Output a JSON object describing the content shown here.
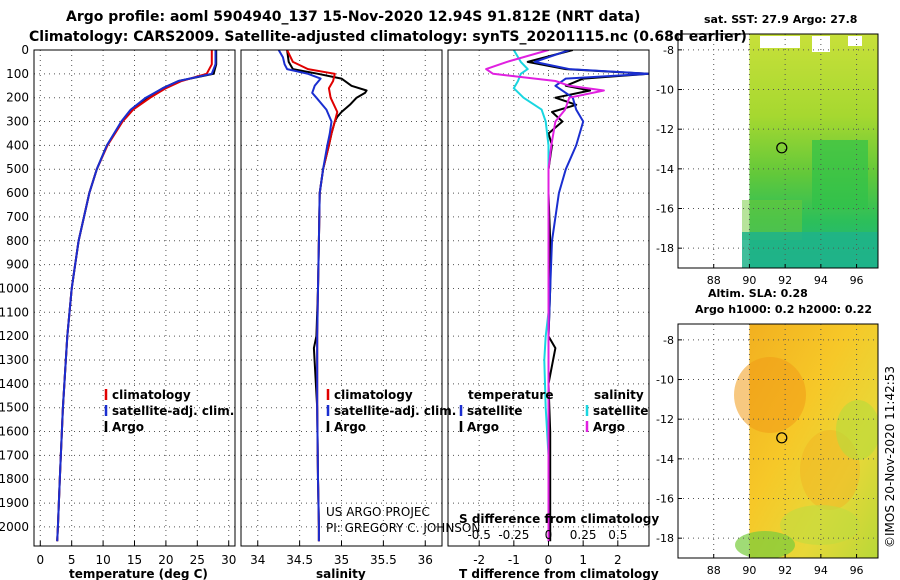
{
  "header": {
    "title_line1": "Argo profile: aoml 5904940_137 15-Nov-2020 12.94S 91.812E (NRT data)",
    "title_line2": "Climatology: CARS2009. Satellite-adjusted climatology: synTS_20201115.nc (0.68d earlier)"
  },
  "depth_axis": {
    "ticks": [
      0,
      100,
      200,
      300,
      400,
      500,
      600,
      700,
      800,
      900,
      1000,
      1100,
      1200,
      1300,
      1400,
      1500,
      1600,
      1700,
      1800,
      1900,
      2000
    ],
    "range": [
      0,
      2080
    ]
  },
  "credits": {
    "project": "US ARGO PROJEC",
    "pi": "PI: GREGORY C. JOHNSON",
    "imos": "©IMOS 20-Nov-2020 11:42:53"
  },
  "colors": {
    "argo": "#000000",
    "clim": "#e00000",
    "sat": "#1a2ed0",
    "sat_sal": "#19d6e0",
    "argo_sal": "#e020e0"
  },
  "chart_data": [
    {
      "type": "line",
      "id": "temperature",
      "xlabel": "temperature (deg C)",
      "xlim": [
        -1,
        31
      ],
      "xticks": [
        0,
        5,
        10,
        15,
        20,
        25,
        30
      ],
      "xtick_labels": [
        "0",
        "5",
        "10",
        "15",
        "20",
        "25",
        "30"
      ],
      "legend": [
        "climatology",
        "satellite-adj. clim.",
        "Argo"
      ],
      "series": [
        {
          "name": "Argo",
          "color": "#000000",
          "depth": [
            0,
            60,
            100,
            130,
            160,
            200,
            250,
            300,
            400,
            500,
            600,
            800,
            1000,
            1200,
            1500,
            1800,
            2000,
            2060
          ],
          "values": [
            28.0,
            28.0,
            27.6,
            22.0,
            19.5,
            17.0,
            14.5,
            13.0,
            10.6,
            9.0,
            7.8,
            6.1,
            5.0,
            4.3,
            3.6,
            3.1,
            2.8,
            2.7
          ]
        },
        {
          "name": "climatology",
          "color": "#e00000",
          "depth": [
            0,
            60,
            100,
            130,
            160,
            200,
            250,
            300,
            400,
            500,
            600,
            800,
            1000,
            1200,
            1500,
            1800,
            2000,
            2060
          ],
          "values": [
            27.3,
            27.3,
            26.5,
            22.5,
            20.0,
            17.5,
            14.8,
            13.1,
            10.7,
            9.0,
            7.8,
            6.1,
            5.0,
            4.3,
            3.6,
            3.1,
            2.8,
            2.7
          ]
        },
        {
          "name": "satellite-adj. clim.",
          "color": "#1a2ed0",
          "depth": [
            0,
            60,
            100,
            130,
            160,
            200,
            250,
            300,
            400,
            500,
            600,
            800,
            1000,
            1200,
            1500,
            1800,
            2000,
            2060
          ],
          "values": [
            27.9,
            27.9,
            27.3,
            22.0,
            19.5,
            16.8,
            14.4,
            12.9,
            10.6,
            9.0,
            7.8,
            6.1,
            5.0,
            4.3,
            3.6,
            3.1,
            2.8,
            2.7
          ]
        }
      ]
    },
    {
      "type": "line",
      "id": "salinity",
      "xlabel": "salinity",
      "xlim": [
        33.8,
        36.2
      ],
      "xticks": [
        34,
        34.5,
        35,
        35.5,
        36
      ],
      "xtick_labels": [
        "34",
        "34.5",
        "35",
        "35.5",
        "36"
      ],
      "legend": [
        "climatology",
        "satellite-adj. clim.",
        "Argo"
      ],
      "series": [
        {
          "name": "Argo",
          "color": "#000000",
          "depth": [
            0,
            50,
            80,
            100,
            120,
            150,
            170,
            180,
            200,
            230,
            260,
            280,
            300,
            350,
            400,
            500,
            600,
            800,
            1000,
            1200,
            1250,
            1500,
            1800,
            2000,
            2060
          ],
          "values": [
            34.35,
            34.37,
            34.42,
            34.72,
            35.0,
            35.12,
            35.3,
            35.28,
            35.18,
            35.1,
            35.0,
            34.95,
            34.92,
            34.88,
            34.85,
            34.78,
            34.74,
            34.73,
            34.72,
            34.7,
            34.67,
            34.71,
            34.72,
            34.73,
            34.73
          ]
        },
        {
          "name": "climatology",
          "color": "#e00000",
          "depth": [
            0,
            50,
            80,
            100,
            130,
            160,
            200,
            260,
            300,
            350,
            400,
            500,
            600,
            800,
            1000,
            1200,
            1500,
            1800,
            2000,
            2060
          ],
          "values": [
            34.35,
            34.42,
            34.6,
            34.92,
            34.9,
            34.85,
            34.87,
            34.95,
            34.92,
            34.88,
            34.85,
            34.78,
            34.74,
            34.73,
            34.72,
            34.71,
            34.71,
            34.72,
            34.73,
            34.73
          ]
        },
        {
          "name": "satellite-adj. clim.",
          "color": "#1a2ed0",
          "depth": [
            0,
            30,
            60,
            80,
            100,
            120,
            150,
            180,
            200,
            250,
            300,
            350,
            400,
            500,
            600,
            800,
            1000,
            1200,
            1500,
            1800,
            2000,
            2060
          ],
          "values": [
            34.25,
            34.3,
            34.32,
            34.35,
            34.6,
            34.75,
            34.68,
            34.65,
            34.7,
            34.82,
            34.88,
            34.86,
            34.83,
            34.78,
            34.74,
            34.73,
            34.72,
            34.71,
            34.71,
            34.72,
            34.73,
            34.73
          ]
        }
      ]
    },
    {
      "type": "line",
      "id": "difference",
      "xlabel": "T difference from climatology",
      "xlim": [
        -2.9,
        2.9
      ],
      "xticks": [
        -2,
        -1,
        0,
        1,
        2
      ],
      "xtick_labels": [
        "-2",
        "-1",
        "0",
        "1",
        "2"
      ],
      "inner_label": "S difference from climatology",
      "inner_ticks": [
        -0.5,
        -0.25,
        0,
        0.25,
        0.5
      ],
      "inner_tick_labels": [
        "-0.5",
        "-0.25",
        "0",
        "0.25",
        "0.5"
      ],
      "legend_title_left": "temperature",
      "legend_title_right": "salinity",
      "legend": [
        "satellite",
        "Argo"
      ],
      "series": [
        {
          "name": "T Argo",
          "color": "#000000",
          "depth": [
            0,
            50,
            80,
            100,
            120,
            150,
            170,
            200,
            230,
            260,
            300,
            350,
            400,
            500,
            600,
            800,
            1000,
            1200,
            1250,
            1400,
            1600,
            1800,
            2000,
            2060
          ],
          "values": [
            0.7,
            -0.6,
            0.5,
            2.9,
            1.0,
            0.5,
            1.2,
            0.2,
            0.8,
            0.1,
            0.4,
            0.0,
            0.1,
            0.0,
            0.0,
            0.05,
            0.05,
            0.0,
            0.2,
            0.0,
            0.05,
            0.05,
            0.05,
            0.05
          ]
        },
        {
          "name": "T satellite",
          "color": "#1a2ed0",
          "depth": [
            0,
            50,
            80,
            100,
            120,
            150,
            200,
            250,
            300,
            400,
            500,
            600,
            800,
            1000,
            1200,
            1500,
            1800,
            2000,
            2060
          ],
          "values": [
            0.6,
            -0.4,
            0.6,
            2.9,
            0.5,
            0.2,
            0.7,
            0.8,
            1.0,
            0.8,
            0.5,
            0.3,
            0.1,
            0.05,
            0.0,
            0.0,
            0.0,
            0.0,
            0.0
          ]
        },
        {
          "name": "S satellite",
          "color": "#19d6e0",
          "depth": [
            0,
            50,
            80,
            100,
            130,
            160,
            200,
            250,
            300,
            400,
            500,
            700,
            900,
            1100,
            1200,
            1300,
            1500,
            1700,
            1900,
            2060
          ],
          "values": [
            -0.25,
            -0.2,
            -0.15,
            -0.2,
            -0.22,
            -0.25,
            -0.18,
            -0.05,
            -0.02,
            0.0,
            0.0,
            0.0,
            0.0,
            0.0,
            -0.02,
            -0.03,
            -0.02,
            0.0,
            0.0,
            0.0
          ]
        },
        {
          "name": "S Argo",
          "color": "#e020e0",
          "depth": [
            0,
            50,
            80,
            100,
            130,
            150,
            170,
            200,
            250,
            300,
            400,
            500,
            700,
            900,
            1100,
            1300,
            1500,
            1700,
            1900,
            2060
          ],
          "values": [
            0.0,
            -0.3,
            -0.45,
            -0.4,
            0.05,
            0.15,
            0.4,
            0.15,
            0.12,
            0.05,
            0.02,
            0.0,
            0.0,
            0.0,
            0.0,
            0.0,
            0.0,
            0.0,
            0.0,
            0.0
          ]
        }
      ]
    },
    {
      "type": "heatmap",
      "id": "sst_map",
      "title": "sat. SST: 27.9 Argo: 27.8",
      "xlim": [
        86,
        97.2
      ],
      "ylim": [
        -19,
        -7.2
      ],
      "xticks": [
        88,
        90,
        92,
        94,
        96
      ],
      "yticks": [
        -8,
        -10,
        -12,
        -14,
        -16,
        -18
      ],
      "xtick_labels": [
        "88",
        "90",
        "92",
        "94",
        "96"
      ],
      "ytick_labels": [
        "-8",
        "-10",
        "-12",
        "-14",
        "-16",
        "-18"
      ],
      "data_start_lon": 90,
      "argo_position": [
        91.812,
        -12.94
      ]
    },
    {
      "type": "heatmap",
      "id": "sla_map",
      "title_line1": "Altim. SLA: 0.28",
      "title_line2": "Argo h1000: 0.2 h2000: 0.22",
      "xlim": [
        86,
        97.2
      ],
      "ylim": [
        -19,
        -7.2
      ],
      "xticks": [
        88,
        90,
        92,
        94,
        96
      ],
      "yticks": [
        -8,
        -10,
        -12,
        -14,
        -16,
        -18
      ],
      "xtick_labels": [
        "88",
        "90",
        "92",
        "94",
        "96"
      ],
      "ytick_labels": [
        "-8",
        "-10",
        "-12",
        "-14",
        "-16",
        "-18"
      ],
      "data_start_lon": 90,
      "argo_position": [
        91.812,
        -12.94
      ]
    }
  ]
}
